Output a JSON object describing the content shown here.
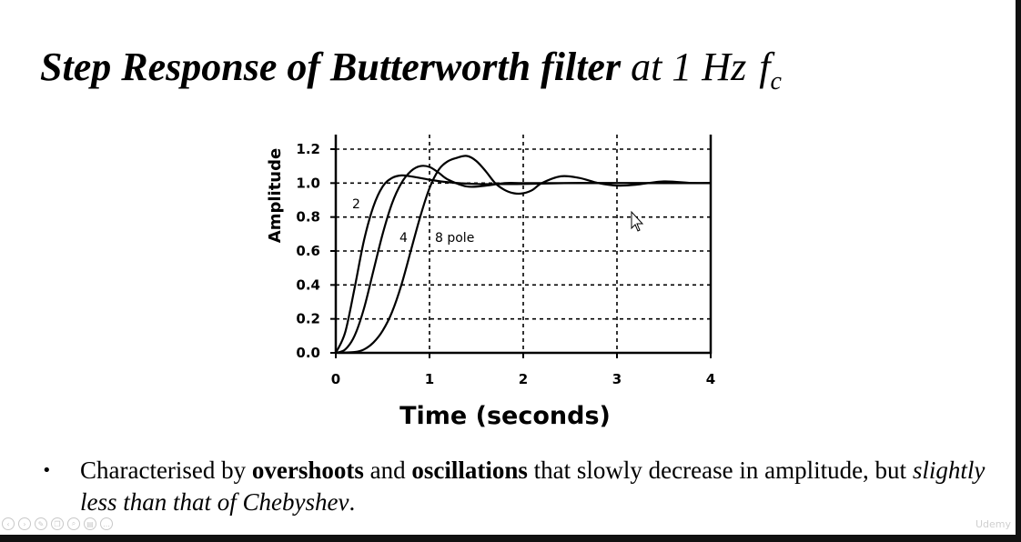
{
  "slide": {
    "title_bold": "Step Response of Butterworth filter",
    "title_rest": "at 1 Hz",
    "title_f": "f",
    "title_sub": "c",
    "bullet": {
      "t1": "Characterised by ",
      "b1": "overshoots",
      "t2": " and ",
      "b2": "oscillations",
      "t3": " that slowly decrease in amplitude, but ",
      "i1": "slightly less than that of Chebyshev",
      "t4": "."
    },
    "watermark": "Udemy",
    "controls": [
      "prev-icon",
      "play-icon",
      "pen-icon",
      "copy-icon",
      "zoom-icon",
      "menu-icon",
      "more-icon"
    ]
  },
  "chart_data": {
    "type": "line",
    "xlabel": "Time (seconds)",
    "ylabel": "Amplitude",
    "xlim": [
      0,
      4
    ],
    "ylim": [
      0,
      1.2
    ],
    "xticks": [
      0,
      1,
      2,
      3,
      4
    ],
    "xtick_labels": [
      "0",
      "1",
      "2",
      "3",
      "4"
    ],
    "yticks": [
      0.0,
      0.2,
      0.4,
      0.6,
      0.8,
      1.0,
      1.2
    ],
    "ytick_labels": [
      "0.0",
      "0.2",
      "0.4",
      "0.6",
      "0.8",
      "1.0",
      "1.2"
    ],
    "grid": true,
    "series": [
      {
        "name": "2",
        "x": [
          0,
          0.1,
          0.2,
          0.3,
          0.4,
          0.5,
          0.6,
          0.7,
          0.8,
          1.0,
          1.2,
          1.5,
          2.0,
          2.5,
          3.0,
          4.0
        ],
        "y": [
          0,
          0.12,
          0.38,
          0.66,
          0.86,
          0.98,
          1.03,
          1.045,
          1.04,
          1.02,
          1.005,
          0.995,
          0.995,
          1.0,
          1.0,
          1.0
        ]
      },
      {
        "name": "4",
        "x": [
          0,
          0.1,
          0.2,
          0.3,
          0.4,
          0.5,
          0.6,
          0.7,
          0.8,
          0.9,
          1.0,
          1.1,
          1.2,
          1.4,
          1.6,
          1.8,
          2.0,
          2.4,
          3.0,
          3.5,
          4.0
        ],
        "y": [
          0,
          0.02,
          0.1,
          0.26,
          0.48,
          0.7,
          0.88,
          1.0,
          1.07,
          1.1,
          1.095,
          1.06,
          1.02,
          0.98,
          0.985,
          1.0,
          1.0,
          1.0,
          1.0,
          1.0,
          1.0
        ]
      },
      {
        "name": "8 pole",
        "x": [
          0,
          0.2,
          0.3,
          0.4,
          0.5,
          0.6,
          0.7,
          0.8,
          0.9,
          1.0,
          1.1,
          1.2,
          1.3,
          1.4,
          1.5,
          1.6,
          1.7,
          1.8,
          1.9,
          2.0,
          2.1,
          2.2,
          2.4,
          2.6,
          2.8,
          3.0,
          3.2,
          3.5,
          3.8,
          4.0
        ],
        "y": [
          0,
          0.005,
          0.02,
          0.06,
          0.13,
          0.24,
          0.4,
          0.6,
          0.8,
          0.97,
          1.08,
          1.13,
          1.15,
          1.16,
          1.13,
          1.07,
          1.0,
          0.96,
          0.94,
          0.94,
          0.96,
          1.0,
          1.04,
          1.03,
          1.0,
          0.985,
          0.99,
          1.01,
          1.0,
          1.0
        ]
      }
    ],
    "curve_labels": [
      "2",
      "4",
      "8 pole"
    ]
  }
}
